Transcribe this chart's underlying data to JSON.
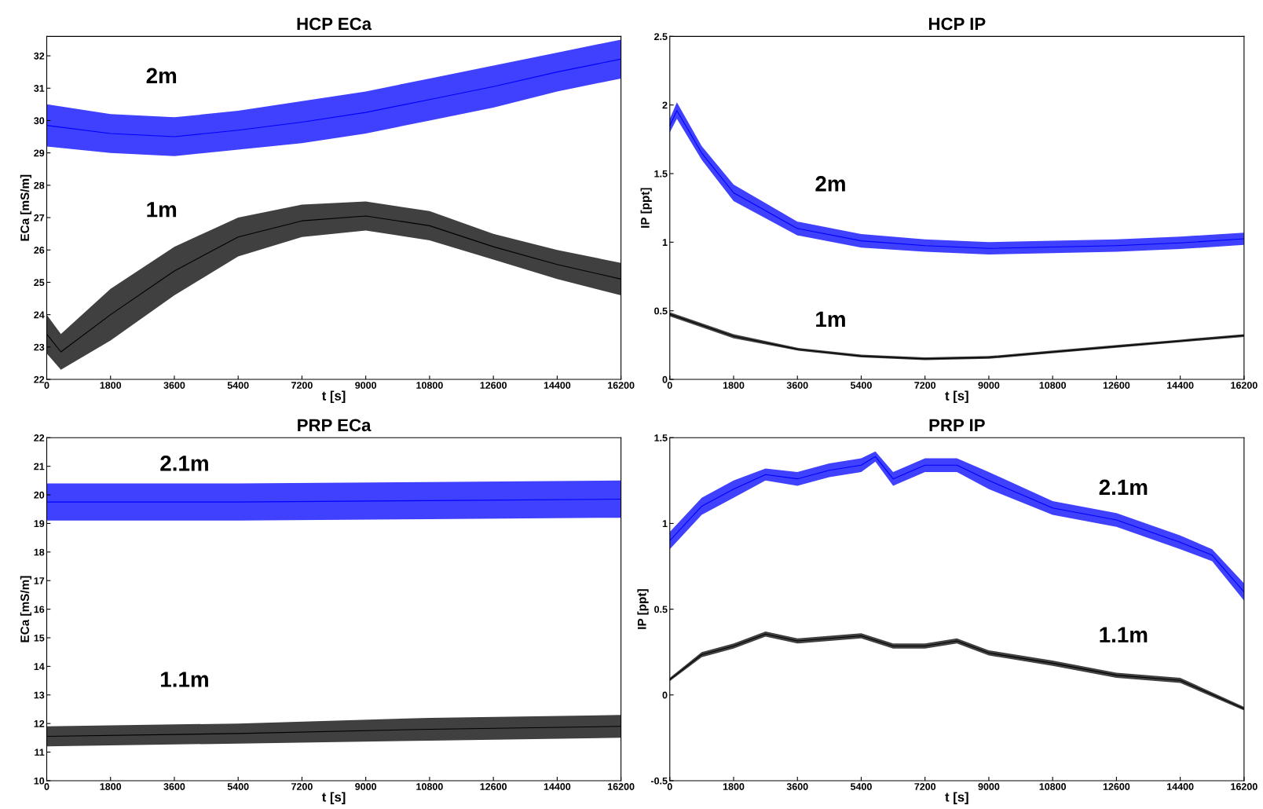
{
  "chart_data": [
    {
      "type": "line",
      "title": "HCP ECa",
      "xlabel": "t [s]",
      "ylabel": "ECa [mS/m]",
      "xlim": [
        0,
        16200
      ],
      "xticks": [
        0,
        1800,
        3600,
        5400,
        7200,
        9000,
        10800,
        12600,
        14400,
        16200
      ],
      "ylim": [
        22,
        32.6
      ],
      "yticks": [
        22,
        23,
        24,
        25,
        26,
        27,
        28,
        29,
        30,
        31,
        32
      ],
      "grid": false,
      "marker": "none",
      "series": [
        {
          "name": "2m",
          "color": "#0000ff",
          "x": [
            0,
            1800,
            3600,
            5400,
            7200,
            9000,
            10800,
            12600,
            14400,
            16200
          ],
          "values": [
            29.85,
            29.6,
            29.5,
            29.7,
            29.95,
            30.25,
            30.65,
            31.05,
            31.5,
            31.9
          ],
          "lower": [
            29.2,
            29.0,
            28.9,
            29.1,
            29.3,
            29.6,
            30.0,
            30.4,
            30.9,
            31.3
          ],
          "upper": [
            30.5,
            30.2,
            30.1,
            30.3,
            30.6,
            30.9,
            31.3,
            31.7,
            32.1,
            32.5
          ]
        },
        {
          "name": "1m",
          "color": "#000000",
          "x": [
            0,
            400,
            1800,
            3600,
            5400,
            7200,
            9000,
            10800,
            12600,
            14400,
            16200
          ],
          "values": [
            23.4,
            22.85,
            24.0,
            25.35,
            26.4,
            26.9,
            27.05,
            26.75,
            26.1,
            25.55,
            25.1
          ],
          "lower": [
            22.8,
            22.3,
            23.2,
            24.6,
            25.8,
            26.4,
            26.6,
            26.3,
            25.7,
            25.1,
            24.6
          ],
          "upper": [
            24.0,
            23.4,
            24.8,
            26.1,
            27.0,
            27.4,
            27.5,
            27.2,
            26.5,
            26.0,
            25.6
          ]
        }
      ]
    },
    {
      "type": "line",
      "title": "HCP IP",
      "xlabel": "t [s]",
      "ylabel": "IP [ppt]",
      "xlim": [
        0,
        16200
      ],
      "xticks": [
        0,
        1800,
        3600,
        5400,
        7200,
        9000,
        10800,
        12600,
        14400,
        16200
      ],
      "ylim": [
        0,
        2.5
      ],
      "yticks": [
        0,
        0.5,
        1,
        1.5,
        2,
        2.5
      ],
      "grid": false,
      "marker": "none",
      "series": [
        {
          "name": "2m",
          "color": "#0000ff",
          "x": [
            0,
            200,
            900,
            1800,
            3600,
            5400,
            7200,
            9000,
            10800,
            12600,
            14400,
            16200
          ],
          "values": [
            1.85,
            1.96,
            1.65,
            1.36,
            1.1,
            1.01,
            0.975,
            0.955,
            0.965,
            0.975,
            0.995,
            1.025
          ],
          "lower": [
            1.8,
            1.9,
            1.6,
            1.3,
            1.05,
            0.96,
            0.93,
            0.91,
            0.92,
            0.93,
            0.95,
            0.98
          ],
          "upper": [
            1.9,
            2.02,
            1.7,
            1.42,
            1.15,
            1.06,
            1.02,
            1.0,
            1.01,
            1.02,
            1.04,
            1.07
          ]
        },
        {
          "name": "1m",
          "color": "#000000",
          "x": [
            0,
            1800,
            3600,
            5400,
            7200,
            9000,
            10800,
            12600,
            14400,
            16200
          ],
          "values": [
            0.475,
            0.315,
            0.22,
            0.17,
            0.15,
            0.16,
            0.2,
            0.24,
            0.28,
            0.32
          ],
          "lower": [
            0.46,
            0.3,
            0.21,
            0.16,
            0.14,
            0.15,
            0.19,
            0.23,
            0.27,
            0.31
          ],
          "upper": [
            0.49,
            0.33,
            0.23,
            0.18,
            0.16,
            0.17,
            0.21,
            0.25,
            0.29,
            0.33
          ]
        }
      ]
    },
    {
      "type": "line",
      "title": "PRP ECa",
      "xlabel": "t [s]",
      "ylabel": "ECa [mS/m]",
      "xlim": [
        0,
        16200
      ],
      "xticks": [
        0,
        1800,
        3600,
        5400,
        7200,
        9000,
        10800,
        12600,
        14400,
        16200
      ],
      "ylim": [
        10,
        22
      ],
      "yticks": [
        10,
        11,
        12,
        13,
        14,
        15,
        16,
        17,
        18,
        19,
        20,
        21,
        22
      ],
      "grid": false,
      "marker": "none",
      "series": [
        {
          "name": "2.1m",
          "color": "#0000ff",
          "x": [
            0,
            5400,
            10800,
            16200
          ],
          "values": [
            19.75,
            19.75,
            19.8,
            19.85
          ],
          "lower": [
            19.1,
            19.1,
            19.15,
            19.2
          ],
          "upper": [
            20.4,
            20.4,
            20.45,
            20.5
          ]
        },
        {
          "name": "1.1m",
          "color": "#000000",
          "x": [
            0,
            5400,
            10800,
            16200
          ],
          "values": [
            11.55,
            11.65,
            11.8,
            11.9
          ],
          "lower": [
            11.2,
            11.3,
            11.4,
            11.5
          ],
          "upper": [
            11.9,
            12.0,
            12.2,
            12.3
          ]
        }
      ]
    },
    {
      "type": "line",
      "title": "PRP IP",
      "xlabel": "t [s]",
      "ylabel": "IP [ppt]",
      "xlim": [
        0,
        16200
      ],
      "xticks": [
        0,
        1800,
        3600,
        5400,
        7200,
        9000,
        10800,
        12600,
        14400,
        16200
      ],
      "ylim": [
        -0.5,
        1.5
      ],
      "yticks": [
        -0.5,
        0,
        0.5,
        1,
        1.5
      ],
      "grid": false,
      "marker": "none",
      "series": [
        {
          "name": "2.1m",
          "color": "#0000ff",
          "x": [
            0,
            900,
            1800,
            2700,
            3600,
            4500,
            5400,
            5800,
            6300,
            7200,
            8100,
            9000,
            10800,
            12600,
            14400,
            15300,
            16200
          ],
          "values": [
            0.9,
            1.1,
            1.2,
            1.285,
            1.26,
            1.31,
            1.34,
            1.39,
            1.26,
            1.34,
            1.34,
            1.25,
            1.09,
            1.02,
            0.89,
            0.815,
            0.6
          ],
          "lower": [
            0.85,
            1.05,
            1.15,
            1.25,
            1.22,
            1.27,
            1.3,
            1.36,
            1.22,
            1.3,
            1.3,
            1.2,
            1.05,
            0.98,
            0.85,
            0.78,
            0.55
          ],
          "upper": [
            0.95,
            1.15,
            1.25,
            1.32,
            1.3,
            1.35,
            1.38,
            1.42,
            1.3,
            1.38,
            1.38,
            1.3,
            1.13,
            1.06,
            0.93,
            0.85,
            0.65
          ]
        },
        {
          "name": "1.1m",
          "color": "#000000",
          "x": [
            0,
            900,
            1800,
            2700,
            3600,
            5400,
            6300,
            7200,
            8100,
            9000,
            10800,
            12600,
            14400,
            16200
          ],
          "values": [
            0.09,
            0.235,
            0.285,
            0.355,
            0.315,
            0.345,
            0.285,
            0.285,
            0.315,
            0.245,
            0.185,
            0.115,
            0.085,
            -0.08
          ],
          "lower": [
            0.08,
            0.22,
            0.27,
            0.34,
            0.3,
            0.33,
            0.27,
            0.27,
            0.3,
            0.23,
            0.17,
            0.1,
            0.07,
            -0.09
          ],
          "upper": [
            0.1,
            0.25,
            0.3,
            0.37,
            0.33,
            0.36,
            0.3,
            0.3,
            0.33,
            0.26,
            0.2,
            0.13,
            0.1,
            -0.07
          ]
        }
      ]
    }
  ]
}
